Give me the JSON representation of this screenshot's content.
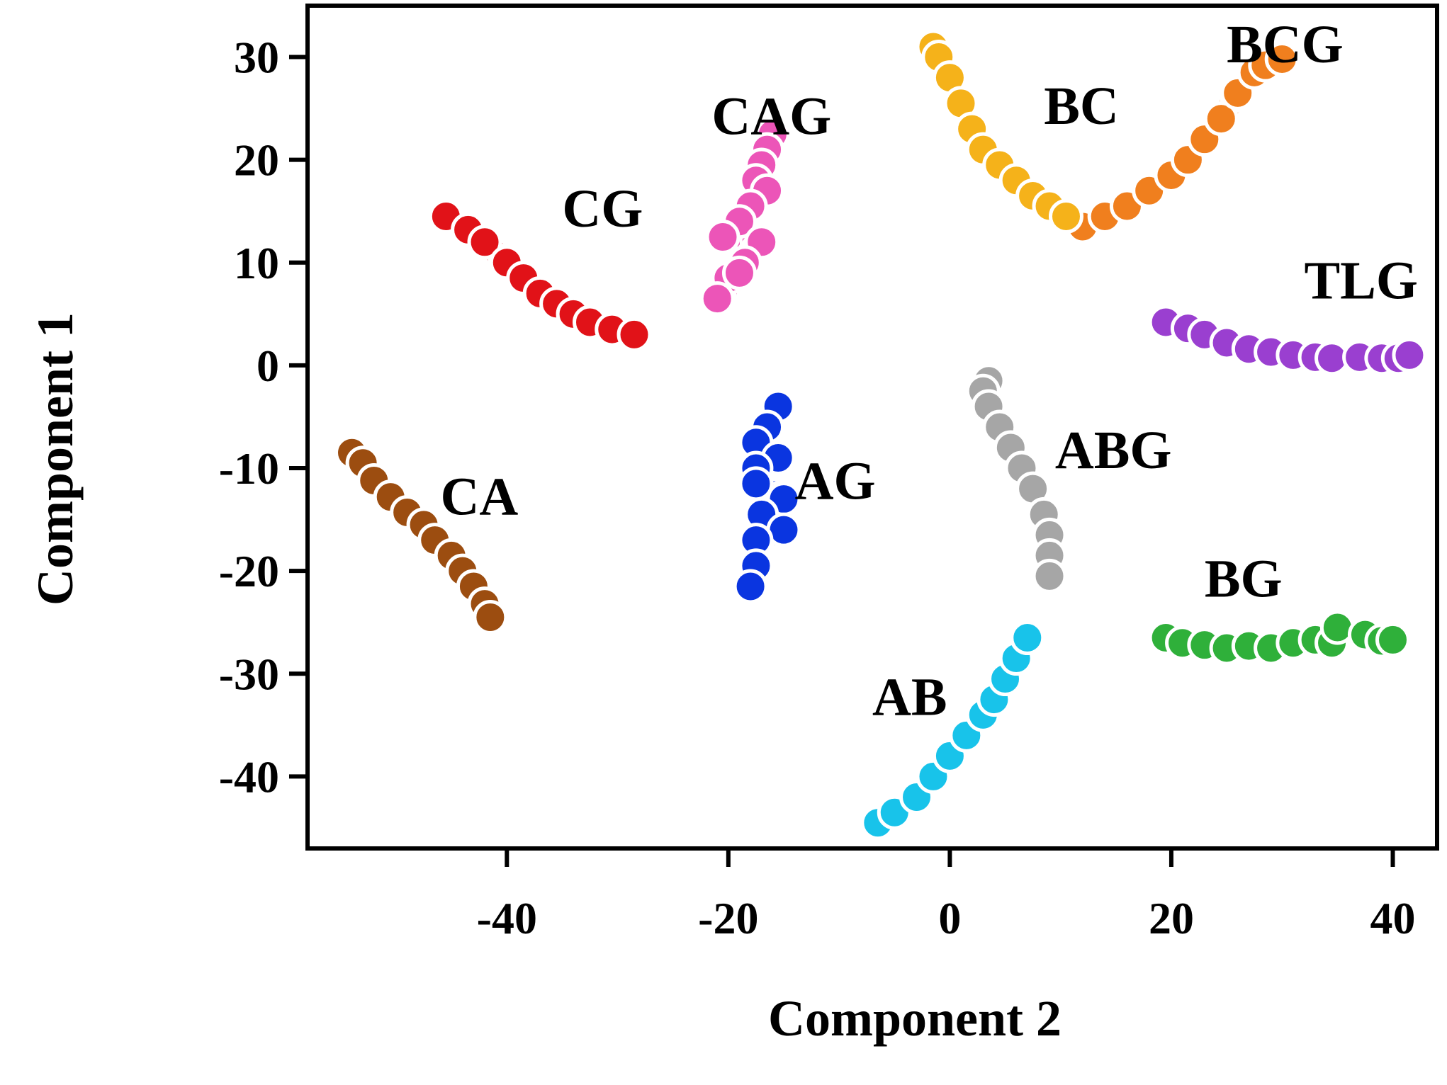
{
  "chart_data": {
    "type": "scatter",
    "xlabel": "Component 2",
    "ylabel": "Component 1",
    "xlim": [
      -58,
      44
    ],
    "ylim": [
      -47,
      35
    ],
    "x_ticks": [
      "-40",
      "-20",
      "0",
      "20",
      "40"
    ],
    "x_tick_values": [
      -40,
      -20,
      0,
      20,
      40
    ],
    "y_ticks": [
      "30",
      "20",
      "10",
      "0",
      "-10",
      "-20",
      "-30",
      "-40"
    ],
    "y_tick_values": [
      30,
      20,
      10,
      0,
      -10,
      -20,
      -30,
      -40
    ],
    "series": [
      {
        "name": "BCG",
        "color": "#f07f1e",
        "label_at": [
          25,
          29.5
        ],
        "points": [
          [
            12,
            13.5
          ],
          [
            14,
            14.5
          ],
          [
            16,
            15.5
          ],
          [
            18,
            17
          ],
          [
            20,
            18.5
          ],
          [
            21.5,
            20
          ],
          [
            23,
            22
          ],
          [
            24.5,
            24
          ],
          [
            26,
            26.5
          ],
          [
            27.5,
            28.5
          ],
          [
            28.5,
            29.2
          ],
          [
            30,
            29.8
          ]
        ]
      },
      {
        "name": "BC",
        "color": "#f5b21a",
        "label_at": [
          8.5,
          23.5
        ],
        "points": [
          [
            -1.5,
            31
          ],
          [
            -1,
            30
          ],
          [
            0,
            28
          ],
          [
            1,
            25.5
          ],
          [
            2,
            23
          ],
          [
            3,
            21
          ],
          [
            4.5,
            19.5
          ],
          [
            6,
            18
          ],
          [
            7.5,
            16.5
          ],
          [
            9,
            15.5
          ],
          [
            10.5,
            14.5
          ]
        ]
      },
      {
        "name": "CAG",
        "color": "#ec55b8",
        "label_at": [
          -21.5,
          22.5
        ],
        "points": [
          [
            -16,
            22.5
          ],
          [
            -16.5,
            21
          ],
          [
            -17,
            19.5
          ],
          [
            -17.5,
            18
          ],
          [
            -16.5,
            17
          ],
          [
            -18,
            15.5
          ],
          [
            -19,
            14
          ],
          [
            -20.5,
            12.5
          ],
          [
            -17,
            12
          ],
          [
            -18.5,
            10
          ],
          [
            -20,
            8.5
          ],
          [
            -19,
            9
          ],
          [
            -21,
            6.5
          ]
        ]
      },
      {
        "name": "CG",
        "color": "#e11218",
        "label_at": [
          -35,
          13.5
        ],
        "points": [
          [
            -45.5,
            14.5
          ],
          [
            -43.5,
            13.2
          ],
          [
            -42,
            12
          ],
          [
            -40,
            10
          ],
          [
            -38.5,
            8.5
          ],
          [
            -37,
            7
          ],
          [
            -35.5,
            6
          ],
          [
            -34,
            5
          ],
          [
            -32.5,
            4.2
          ],
          [
            -30.5,
            3.5
          ],
          [
            -28.5,
            3
          ]
        ]
      },
      {
        "name": "TLG",
        "color": "#9a3fd0",
        "label_at": [
          32,
          6.5
        ],
        "points": [
          [
            19.5,
            4.2
          ],
          [
            21.5,
            3.6
          ],
          [
            23,
            3
          ],
          [
            25,
            2.2
          ],
          [
            27,
            1.6
          ],
          [
            29,
            1.3
          ],
          [
            31,
            1
          ],
          [
            33,
            0.8
          ],
          [
            34.5,
            0.7
          ],
          [
            37,
            0.8
          ],
          [
            39,
            0.7
          ],
          [
            40.5,
            0.7
          ],
          [
            41.5,
            1
          ]
        ]
      },
      {
        "name": "ABG",
        "color": "#a6a6a6",
        "label_at": [
          9.5,
          -10
        ],
        "points": [
          [
            3.5,
            -1.5
          ],
          [
            3,
            -2.5
          ],
          [
            3.5,
            -4
          ],
          [
            4.5,
            -6
          ],
          [
            5.5,
            -8
          ],
          [
            6.5,
            -10
          ],
          [
            7.5,
            -12
          ],
          [
            8.5,
            -14.5
          ],
          [
            9,
            -16.5
          ],
          [
            9,
            -18.5
          ],
          [
            9,
            -20.5
          ]
        ]
      },
      {
        "name": "AG",
        "color": "#0a35e0",
        "label_at": [
          -14,
          -13
        ],
        "points": [
          [
            -15.5,
            -4
          ],
          [
            -16.5,
            -6
          ],
          [
            -17.5,
            -7.5
          ],
          [
            -15.5,
            -9
          ],
          [
            -17.5,
            -10
          ],
          [
            -17.5,
            -11.5
          ],
          [
            -15,
            -13
          ],
          [
            -17,
            -14.5
          ],
          [
            -15,
            -16
          ],
          [
            -17.5,
            -17
          ],
          [
            -17.5,
            -19.5
          ],
          [
            -18,
            -21.5
          ]
        ]
      },
      {
        "name": "CA",
        "color": "#9c4d10",
        "label_at": [
          -46,
          -14.5
        ],
        "points": [
          [
            -54,
            -8.5
          ],
          [
            -53,
            -9.5
          ],
          [
            -52,
            -11.2
          ],
          [
            -50.5,
            -12.8
          ],
          [
            -49,
            -14.3
          ],
          [
            -47.5,
            -15.5
          ],
          [
            -46.5,
            -17
          ],
          [
            -45,
            -18.5
          ],
          [
            -44,
            -20
          ],
          [
            -43,
            -21.5
          ],
          [
            -42,
            -23.2
          ],
          [
            -41.5,
            -24.5
          ]
        ]
      },
      {
        "name": "BG",
        "color": "#2fb03a",
        "label_at": [
          23,
          -22.5
        ],
        "points": [
          [
            19.5,
            -26.5
          ],
          [
            21,
            -27
          ],
          [
            23,
            -27.2
          ],
          [
            25,
            -27.5
          ],
          [
            27,
            -27.3
          ],
          [
            29,
            -27.5
          ],
          [
            31,
            -27
          ],
          [
            33,
            -26.7
          ],
          [
            34.5,
            -27
          ],
          [
            35,
            -25.5
          ],
          [
            37.5,
            -26.2
          ],
          [
            39,
            -26.8
          ],
          [
            40,
            -26.7
          ]
        ]
      },
      {
        "name": "AB",
        "color": "#18c3ea",
        "label_at": [
          -7,
          -34
        ],
        "points": [
          [
            -6.5,
            -44.5
          ],
          [
            -5,
            -43.5
          ],
          [
            -3,
            -42
          ],
          [
            -1.5,
            -40
          ],
          [
            0,
            -38
          ],
          [
            1.5,
            -36
          ],
          [
            3,
            -34
          ],
          [
            4,
            -32.5
          ],
          [
            5,
            -30.5
          ],
          [
            6,
            -28.5
          ],
          [
            7,
            -26.5
          ]
        ]
      }
    ]
  }
}
